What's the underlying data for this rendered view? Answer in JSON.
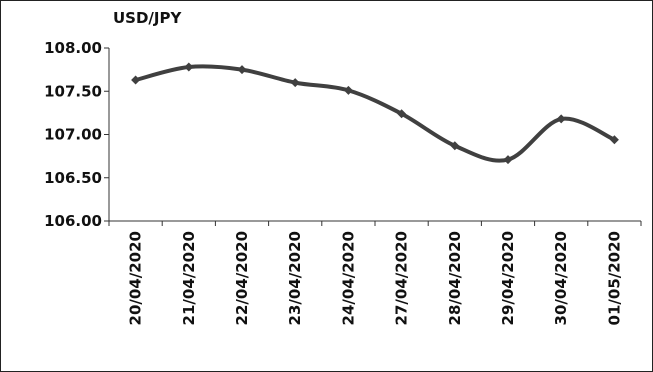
{
  "chart_data": {
    "type": "line",
    "title": "",
    "ylabel": "USD/JPY",
    "xlabel": "",
    "categories": [
      "20/04/2020",
      "21/04/2020",
      "22/04/2020",
      "23/04/2020",
      "24/04/2020",
      "27/04/2020",
      "28/04/2020",
      "29/04/2020",
      "30/04/2020",
      "01/05/2020"
    ],
    "series": [
      {
        "values": [
          107.63,
          107.78,
          107.75,
          107.6,
          107.51,
          107.24,
          106.87,
          106.71,
          107.18,
          106.94
        ]
      }
    ],
    "ylim": [
      106.0,
      108.0
    ],
    "yticks": [
      "106.00",
      "106.50",
      "107.00",
      "107.50",
      "108.00"
    ],
    "grid": false,
    "legend": "none",
    "line_color": "#404040"
  }
}
